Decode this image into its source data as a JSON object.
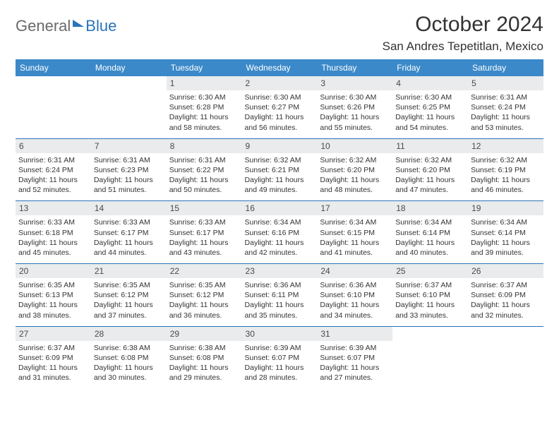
{
  "brand": {
    "general": "General",
    "blue": "Blue"
  },
  "header": {
    "month_title": "October 2024",
    "location": "San Andres Tepetitlan, Mexico"
  },
  "colors": {
    "header_bg": "#3b89c9",
    "accent": "#2b74b8",
    "daynum_bg": "#e9ebec",
    "text": "#333333"
  },
  "day_labels": [
    "Sunday",
    "Monday",
    "Tuesday",
    "Wednesday",
    "Thursday",
    "Friday",
    "Saturday"
  ],
  "weeks": [
    [
      null,
      null,
      {
        "n": "1",
        "sr": "6:30 AM",
        "ss": "6:28 PM",
        "dl": "11 hours and 58 minutes."
      },
      {
        "n": "2",
        "sr": "6:30 AM",
        "ss": "6:27 PM",
        "dl": "11 hours and 56 minutes."
      },
      {
        "n": "3",
        "sr": "6:30 AM",
        "ss": "6:26 PM",
        "dl": "11 hours and 55 minutes."
      },
      {
        "n": "4",
        "sr": "6:30 AM",
        "ss": "6:25 PM",
        "dl": "11 hours and 54 minutes."
      },
      {
        "n": "5",
        "sr": "6:31 AM",
        "ss": "6:24 PM",
        "dl": "11 hours and 53 minutes."
      }
    ],
    [
      {
        "n": "6",
        "sr": "6:31 AM",
        "ss": "6:24 PM",
        "dl": "11 hours and 52 minutes."
      },
      {
        "n": "7",
        "sr": "6:31 AM",
        "ss": "6:23 PM",
        "dl": "11 hours and 51 minutes."
      },
      {
        "n": "8",
        "sr": "6:31 AM",
        "ss": "6:22 PM",
        "dl": "11 hours and 50 minutes."
      },
      {
        "n": "9",
        "sr": "6:32 AM",
        "ss": "6:21 PM",
        "dl": "11 hours and 49 minutes."
      },
      {
        "n": "10",
        "sr": "6:32 AM",
        "ss": "6:20 PM",
        "dl": "11 hours and 48 minutes."
      },
      {
        "n": "11",
        "sr": "6:32 AM",
        "ss": "6:20 PM",
        "dl": "11 hours and 47 minutes."
      },
      {
        "n": "12",
        "sr": "6:32 AM",
        "ss": "6:19 PM",
        "dl": "11 hours and 46 minutes."
      }
    ],
    [
      {
        "n": "13",
        "sr": "6:33 AM",
        "ss": "6:18 PM",
        "dl": "11 hours and 45 minutes."
      },
      {
        "n": "14",
        "sr": "6:33 AM",
        "ss": "6:17 PM",
        "dl": "11 hours and 44 minutes."
      },
      {
        "n": "15",
        "sr": "6:33 AM",
        "ss": "6:17 PM",
        "dl": "11 hours and 43 minutes."
      },
      {
        "n": "16",
        "sr": "6:34 AM",
        "ss": "6:16 PM",
        "dl": "11 hours and 42 minutes."
      },
      {
        "n": "17",
        "sr": "6:34 AM",
        "ss": "6:15 PM",
        "dl": "11 hours and 41 minutes."
      },
      {
        "n": "18",
        "sr": "6:34 AM",
        "ss": "6:14 PM",
        "dl": "11 hours and 40 minutes."
      },
      {
        "n": "19",
        "sr": "6:34 AM",
        "ss": "6:14 PM",
        "dl": "11 hours and 39 minutes."
      }
    ],
    [
      {
        "n": "20",
        "sr": "6:35 AM",
        "ss": "6:13 PM",
        "dl": "11 hours and 38 minutes."
      },
      {
        "n": "21",
        "sr": "6:35 AM",
        "ss": "6:12 PM",
        "dl": "11 hours and 37 minutes."
      },
      {
        "n": "22",
        "sr": "6:35 AM",
        "ss": "6:12 PM",
        "dl": "11 hours and 36 minutes."
      },
      {
        "n": "23",
        "sr": "6:36 AM",
        "ss": "6:11 PM",
        "dl": "11 hours and 35 minutes."
      },
      {
        "n": "24",
        "sr": "6:36 AM",
        "ss": "6:10 PM",
        "dl": "11 hours and 34 minutes."
      },
      {
        "n": "25",
        "sr": "6:37 AM",
        "ss": "6:10 PM",
        "dl": "11 hours and 33 minutes."
      },
      {
        "n": "26",
        "sr": "6:37 AM",
        "ss": "6:09 PM",
        "dl": "11 hours and 32 minutes."
      }
    ],
    [
      {
        "n": "27",
        "sr": "6:37 AM",
        "ss": "6:09 PM",
        "dl": "11 hours and 31 minutes."
      },
      {
        "n": "28",
        "sr": "6:38 AM",
        "ss": "6:08 PM",
        "dl": "11 hours and 30 minutes."
      },
      {
        "n": "29",
        "sr": "6:38 AM",
        "ss": "6:08 PM",
        "dl": "11 hours and 29 minutes."
      },
      {
        "n": "30",
        "sr": "6:39 AM",
        "ss": "6:07 PM",
        "dl": "11 hours and 28 minutes."
      },
      {
        "n": "31",
        "sr": "6:39 AM",
        "ss": "6:07 PM",
        "dl": "11 hours and 27 minutes."
      },
      null,
      null
    ]
  ],
  "labels": {
    "sunrise": "Sunrise:",
    "sunset": "Sunset:",
    "daylight": "Daylight:"
  }
}
